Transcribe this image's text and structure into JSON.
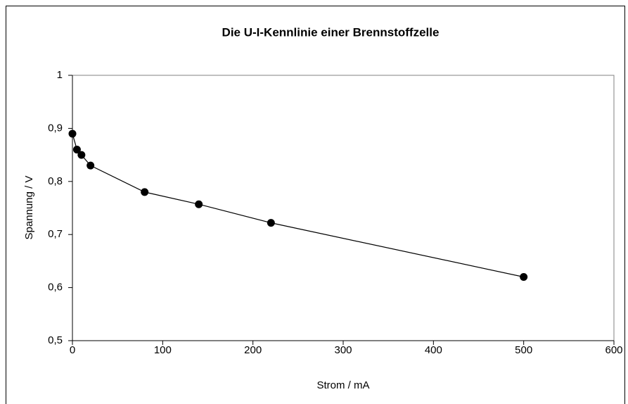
{
  "chart_data": {
    "type": "scatter",
    "title": "Die U-I-Kennlinie einer Brennstoffzelle",
    "x_label": "Strom / mA",
    "y_label": "Spannung / V",
    "x": [
      0,
      5,
      10,
      20,
      80,
      140,
      220,
      500
    ],
    "values": [
      0.89,
      0.86,
      0.85,
      0.83,
      0.78,
      0.757,
      0.722,
      0.62
    ],
    "color": "#000000",
    "connect_points": true,
    "xlim": [
      0,
      600
    ],
    "xticks": [
      0,
      100,
      200,
      300,
      400,
      500,
      600
    ],
    "ylim": [
      0.5,
      1
    ],
    "yticks": [
      {
        "value": 0.5,
        "label": "0,5"
      },
      {
        "value": 0.6,
        "label": "0,6"
      },
      {
        "value": 0.7,
        "label": "0,7"
      },
      {
        "value": 0.8,
        "label": "0,8"
      },
      {
        "value": 0.9,
        "label": "0,9"
      },
      1
    ],
    "grid": false
  }
}
